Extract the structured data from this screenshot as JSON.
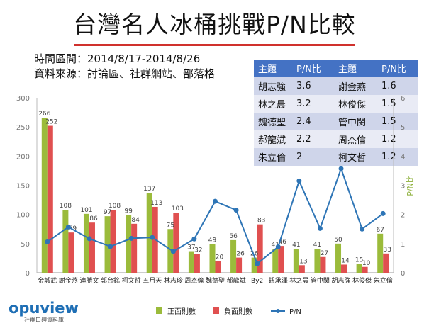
{
  "header": {
    "title": "台灣名人冰桶挑戰P/N比較",
    "period": "時間區間：2014/8/17-2014/8/26",
    "source": "資料來源：討論區、社群網站、部落格"
  },
  "pn_table": {
    "headers": [
      "主題",
      "P/N比",
      "主題",
      "P/N比"
    ],
    "rows": [
      [
        "胡志強",
        "3.6",
        "謝金燕",
        "1.6"
      ],
      [
        "林之晨",
        "3.2",
        "林俊傑",
        "1.5"
      ],
      [
        "魏德聖",
        "2.4",
        "管中閔",
        "1.5"
      ],
      [
        "郝龍斌",
        "2.2",
        "周杰倫",
        "1.2"
      ],
      [
        "朱立倫",
        "2",
        "柯文哲",
        "1.2"
      ]
    ]
  },
  "logo": {
    "word": "opuview",
    "sub": "社群口碑資料庫"
  },
  "colors": {
    "positive": "#9bbb3b",
    "negative": "#e05050",
    "pn_line": "#2e75b6",
    "title_rule": "#d0312d",
    "table_header": "#4472c4"
  },
  "chart_data": {
    "type": "bar",
    "categories": [
      "金城武",
      "謝金燕",
      "連勝文",
      "郭台銘",
      "柯文哲",
      "五月天",
      "林志玲",
      "周杰倫",
      "魏德聖",
      "郝龍斌",
      "By2",
      "鈕承澤",
      "林之晨",
      "管中閔",
      "胡志強",
      "林俊傑",
      "朱立倫"
    ],
    "series": [
      {
        "name": "正面則數",
        "type": "bar",
        "axis": "left",
        "values": [
          266,
          108,
          101,
          97,
          99,
          137,
          75,
          37,
          49,
          56,
          26,
          41,
          41,
          41,
          50,
          15,
          67
        ]
      },
      {
        "name": "負面則數",
        "type": "bar",
        "axis": "left",
        "values": [
          252,
          69,
          86,
          108,
          84,
          113,
          103,
          32,
          20,
          26,
          83,
          46,
          13,
          27,
          14,
          10,
          33
        ]
      },
      {
        "name": "P/N",
        "type": "line",
        "axis": "right",
        "values": [
          1.06,
          1.57,
          1.17,
          0.9,
          1.18,
          1.21,
          0.73,
          1.16,
          2.45,
          2.15,
          0.31,
          0.89,
          3.15,
          1.52,
          3.57,
          1.5,
          2.03
        ]
      }
    ],
    "bar_labels": [
      [
        "266",
        "108",
        "101",
        "97",
        "99",
        "137",
        "75",
        "37",
        "49",
        "56",
        "26",
        "41",
        "41",
        "41",
        "50",
        "15",
        "67"
      ],
      [
        "252",
        "69",
        "86",
        "108",
        "84",
        "113",
        "103",
        "32",
        "20",
        "26",
        "83",
        "46",
        "13",
        "27",
        "14",
        "10",
        "33"
      ]
    ],
    "y_left": {
      "ticks": [
        "0",
        "50",
        "100",
        "150",
        "200",
        "250",
        "300"
      ],
      "range": [
        0,
        300
      ]
    },
    "y_right": {
      "ticks": [
        "0",
        "1",
        "2",
        "3",
        "4",
        "5",
        "6"
      ],
      "range": [
        0,
        6
      ],
      "label": "P/N比"
    },
    "grid": false,
    "legend": [
      "正面則數",
      "負面則數",
      "P/N"
    ],
    "legend_position": "bottom"
  }
}
